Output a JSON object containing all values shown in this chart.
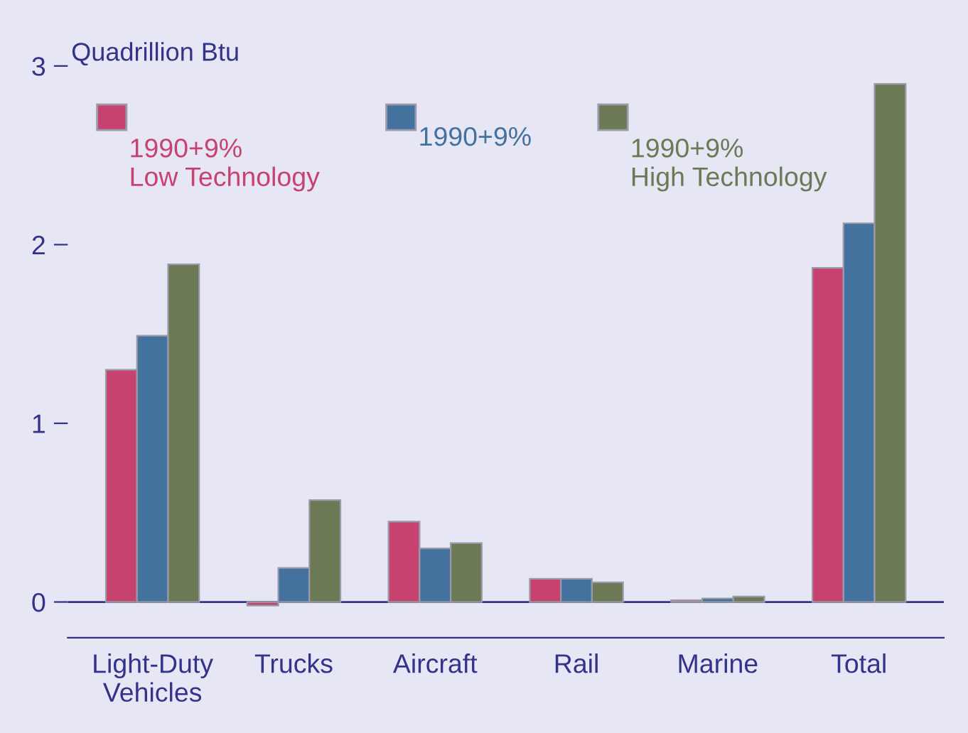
{
  "chart_data": {
    "type": "bar",
    "ylabel": "Quadrillion Btu",
    "categories": [
      "Light-Duty\nVehicles",
      "Trucks",
      "Aircraft",
      "Rail",
      "Marine",
      "Total"
    ],
    "series": [
      {
        "name": "1990+9%\nLow Technology",
        "color": "#c8426f",
        "values": [
          1.3,
          -0.02,
          0.45,
          0.13,
          0.01,
          1.87
        ]
      },
      {
        "name": "1990+9%",
        "color": "#43729e",
        "values": [
          1.49,
          0.19,
          0.3,
          0.13,
          0.02,
          2.12
        ]
      },
      {
        "name": "1990+9%\nHigh Technology",
        "color": "#6b7a55",
        "values": [
          1.89,
          0.57,
          0.33,
          0.11,
          0.03,
          2.9
        ]
      }
    ],
    "ylim": [
      -0.2,
      3.0
    ],
    "yticks": [
      0,
      1,
      2,
      3
    ],
    "ref_lines": [
      {
        "axis": "y",
        "value": 0,
        "color": "#33338a"
      }
    ],
    "grid": false,
    "legend": "top"
  }
}
